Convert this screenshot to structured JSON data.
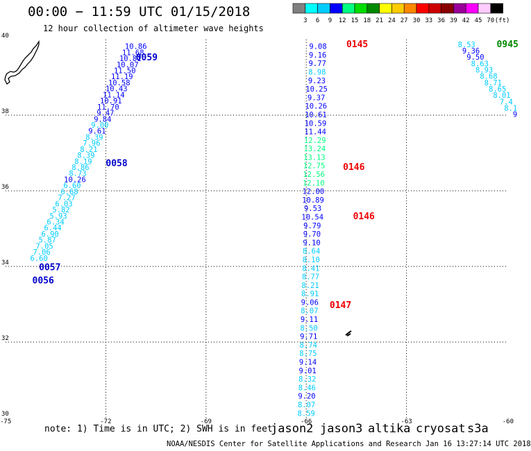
{
  "header": {
    "title": "00:00 − 11:59 UTC 01/15/2018",
    "subtitle": "12 hour collection of altimeter wave heights"
  },
  "legend": {
    "colors": [
      "#808080",
      "#00ffff",
      "#00ccff",
      "#0000ff",
      "#00ff80",
      "#00dd00",
      "#008800",
      "#ffff00",
      "#ffcc00",
      "#ff8800",
      "#ff0000",
      "#cc0000",
      "#880000",
      "#990099",
      "#ff00ff",
      "#ffccff",
      "#000000"
    ],
    "labels": [
      "3",
      "6",
      "9",
      "12",
      "15",
      "18",
      "21",
      "24",
      "27",
      "30",
      "33",
      "36",
      "39",
      "42",
      "45",
      "70"
    ],
    "unit": "(ft)"
  },
  "axes": {
    "x_ticks": [
      "-75",
      "-72",
      "-69",
      "-66",
      "-63",
      "-60"
    ],
    "y_ticks": [
      "40",
      "38",
      "36",
      "34",
      "32",
      "30"
    ],
    "lon_range": [
      -75,
      -60
    ],
    "lat_range": [
      30,
      40
    ]
  },
  "tracks": [
    {
      "name": "track-0056-0059",
      "lon0": -74.0,
      "lat0": 34.15,
      "lon1": -71.1,
      "lat1": 39.75,
      "values": [
        "6.60",
        "7.06",
        "7.05",
        "5.87",
        "6.90",
        "6.44",
        "6.34",
        "5.93",
        "5.82",
        "6.03",
        "7.27",
        "6.68",
        "6.60",
        "10.26",
        "8.73",
        "8.86",
        "8.19",
        "8.39",
        "8.21",
        "7.96",
        "8.39",
        "9.61",
        "9.00",
        "9.84",
        "9.47",
        "11.70",
        "10.91",
        "11.14",
        "10.43",
        "10.58",
        "11.19",
        "11.50",
        "10.07",
        "10.81",
        "11.68",
        "10.86"
      ],
      "colors": [
        "#00ccff",
        "#00ccff",
        "#00ccff",
        "#00ccff",
        "#00ccff",
        "#00ccff",
        "#00ccff",
        "#00ccff",
        "#00ccff",
        "#00ccff",
        "#00ccff",
        "#00ccff",
        "#00ccff",
        "#0000ff",
        "#00ccff",
        "#00ccff",
        "#00ccff",
        "#00ccff",
        "#00ccff",
        "#00ccff",
        "#00ccff",
        "#0000ff",
        "#00ccff",
        "#0000ff",
        "#0000ff",
        "#0000ff",
        "#0000ff",
        "#0000ff",
        "#0000ff",
        "#0000ff",
        "#0000ff",
        "#0000ff",
        "#0000ff",
        "#0000ff",
        "#0000ff",
        "#0000ff"
      ],
      "times": [
        {
          "label": "0059",
          "lon": -71.1,
          "lat": 39.45,
          "color": "#0000cc"
        },
        {
          "label": "0058",
          "lon": -72.0,
          "lat": 36.65,
          "color": "#0000cc"
        },
        {
          "label": "0057",
          "lon": -74.0,
          "lat": 33.9,
          "color": "#0000cc"
        },
        {
          "label": "0056",
          "lon": -74.2,
          "lat": 33.55,
          "color": "#0000cc"
        }
      ]
    },
    {
      "name": "track-0145-0147",
      "lon0": -65.65,
      "lat0": 39.75,
      "lon1": -66.0,
      "lat1": 30.05,
      "values": [
        "9.08",
        "9.16",
        "9.77",
        "8.98",
        "9.23",
        "10.25",
        "9.37",
        "10.26",
        "10.61",
        "10.59",
        "11.44",
        "12.29",
        "13.24",
        "13.13",
        "12.75",
        "12.56",
        "12.10",
        "12.00",
        "10.89",
        "9.53",
        "10.54",
        "9.79",
        "9.70",
        "9.10",
        "8.64",
        "8.10",
        "8.41",
        "8.77",
        "8.21",
        "8.91",
        "9.06",
        "8.07",
        "9.11",
        "8.50",
        "9.71",
        "8.74",
        "8.75",
        "9.14",
        "9.01",
        "8.32",
        "8.46",
        "9.20",
        "8.07",
        "8.59"
      ],
      "colors": [
        "#0000ff",
        "#0000ff",
        "#0000ff",
        "#00ccff",
        "#0000ff",
        "#0000ff",
        "#0000ff",
        "#0000ff",
        "#0000ff",
        "#0000ff",
        "#0000ff",
        "#00ff80",
        "#00ff80",
        "#00ff80",
        "#00ff80",
        "#00ff80",
        "#00ff80",
        "#0000ff",
        "#0000ff",
        "#0000ff",
        "#0000ff",
        "#0000ff",
        "#0000ff",
        "#0000ff",
        "#00ccff",
        "#00ccff",
        "#00ccff",
        "#00ccff",
        "#00ccff",
        "#00ccff",
        "#0000ff",
        "#00ccff",
        "#0000ff",
        "#00ccff",
        "#0000ff",
        "#00ccff",
        "#00ccff",
        "#0000ff",
        "#0000ff",
        "#00ccff",
        "#00ccff",
        "#0000ff",
        "#00ccff",
        "#00ccff"
      ],
      "times": [
        {
          "label": "0145",
          "lon": -64.8,
          "lat": 39.8,
          "color": "#ee0000"
        },
        {
          "label": "0146",
          "lon": -64.9,
          "lat": 36.55,
          "color": "#ee0000"
        },
        {
          "label": "0146",
          "lon": -64.6,
          "lat": 35.25,
          "color": "#ee0000"
        },
        {
          "label": "0147",
          "lon": -65.3,
          "lat": 32.9,
          "color": "#ee0000"
        }
      ]
    },
    {
      "name": "track-0945",
      "lon0": -61.2,
      "lat0": 39.8,
      "lon1": -59.75,
      "lat1": 37.95,
      "values": [
        "8.53",
        "9.36",
        "9.50",
        "8.63",
        "8.93",
        "8.68",
        "8.71",
        "8.65",
        "8.01",
        "7.4",
        "8.1",
        "9"
      ],
      "colors": [
        "#00ccff",
        "#0000ff",
        "#0000ff",
        "#00ccff",
        "#00ccff",
        "#00ccff",
        "#00ccff",
        "#00ccff",
        "#00ccff",
        "#00ccff",
        "#00ccff",
        "#0000ff"
      ],
      "times": [
        {
          "label": "0945",
          "lon": -60.3,
          "lat": 39.8,
          "color": "#008800"
        }
      ]
    }
  ],
  "note": "note: 1) Time is in UTC; 2) SWH is in feet",
  "satellites": [
    {
      "name": "jason2",
      "color": "#0000ff"
    },
    {
      "name": "jason3",
      "color": "#00bb00"
    },
    {
      "name": "altika",
      "color": "#ff9900"
    },
    {
      "name": "cryosat",
      "color": "#ee0000"
    },
    {
      "name": "s3a",
      "color": "#880000"
    }
  ],
  "credit": "NOAA/NESDIS Center for Satellite Applications and Research   Jan 16 13:27:14 UTC 2018"
}
